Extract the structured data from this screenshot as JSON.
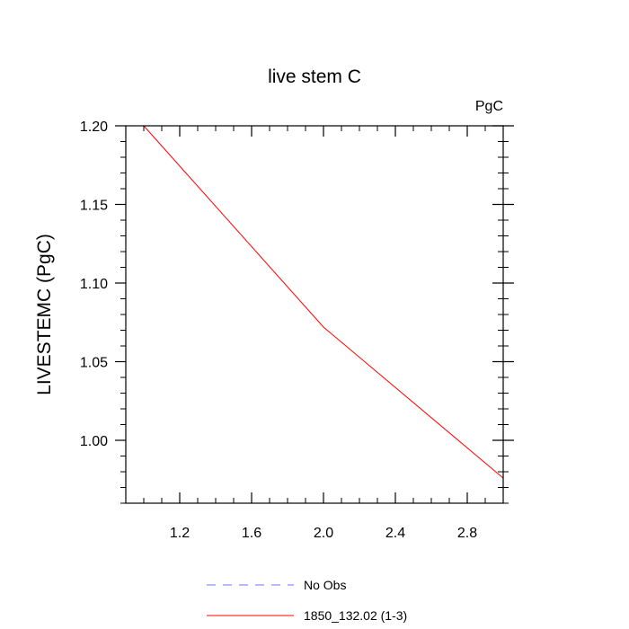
{
  "chart_data": {
    "type": "line",
    "title": "live stem C",
    "units_label": "PgC",
    "xlabel": "",
    "ylabel": "LIVESTEMC  (PgC)",
    "xlim": [
      0.9,
      3.0
    ],
    "ylim": [
      0.96,
      1.2
    ],
    "x_ticks": [
      1.2,
      1.6,
      2.0,
      2.4,
      2.8
    ],
    "x_tick_labels": [
      "1.2",
      "1.6",
      "2.0",
      "2.4",
      "2.8"
    ],
    "y_ticks": [
      1.0,
      1.05,
      1.1,
      1.15,
      1.2
    ],
    "y_tick_labels": [
      "1.00",
      "1.05",
      "1.10",
      "1.15",
      "1.20"
    ],
    "grid": false,
    "legend_position": "bottom",
    "series": [
      {
        "name": "No Obs",
        "color": "#7070ff",
        "dash": "dashed",
        "x": [],
        "y": []
      },
      {
        "name": "1850_132.02 (1-3)",
        "color": "#ff0000",
        "dash": "solid",
        "x": [
          1.0,
          2.0,
          3.0
        ],
        "y": [
          1.2,
          1.072,
          0.976
        ]
      }
    ]
  }
}
